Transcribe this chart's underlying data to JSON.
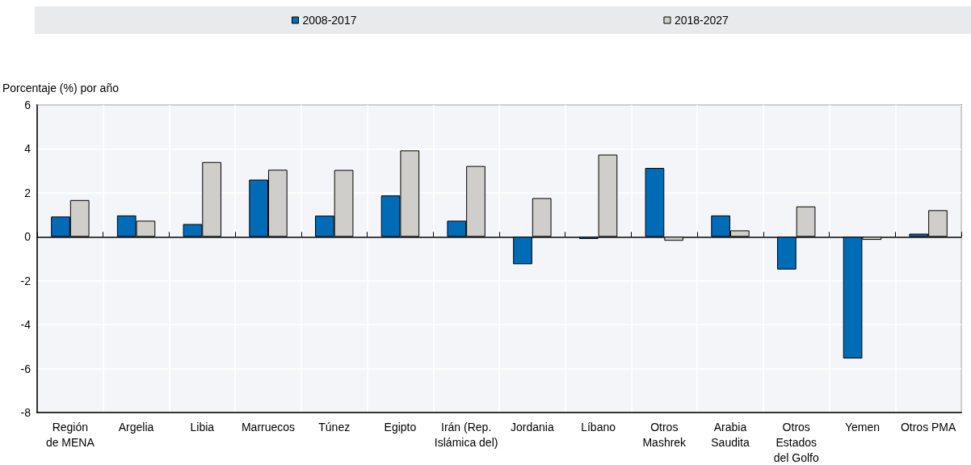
{
  "chart_data": {
    "type": "bar",
    "ylabel": "Porcentaje (%) por año",
    "categories": [
      "Región\nde MENA",
      "Argelia",
      "Libia",
      "Marruecos",
      "Túnez",
      "Egipto",
      "Irán (Rep.\nIslámica del)",
      "Jordania",
      "Líbano",
      "Otros\nMashrek",
      "Arabia\nSaudita",
      "Otros\nEstados\ndel Golfo",
      "Yemen",
      "Otros PMA"
    ],
    "series": [
      {
        "name": "2008-2017",
        "color": "#006bb6",
        "values": [
          0.92,
          0.97,
          0.58,
          2.6,
          0.96,
          1.88,
          0.73,
          -1.25,
          -0.1,
          3.13,
          0.97,
          -1.49,
          -5.54,
          0.14
        ]
      },
      {
        "name": "2018-2027",
        "color": "#cfceca",
        "values": [
          1.67,
          0.73,
          3.4,
          3.05,
          3.04,
          3.93,
          3.22,
          1.76,
          3.74,
          -0.18,
          0.29,
          1.38,
          -0.14,
          1.21
        ]
      }
    ],
    "ylim": [
      -8,
      6
    ],
    "yticks": [
      -8,
      -6,
      -4,
      -2,
      0,
      2,
      4,
      6
    ],
    "grid": true,
    "legend": "top"
  }
}
